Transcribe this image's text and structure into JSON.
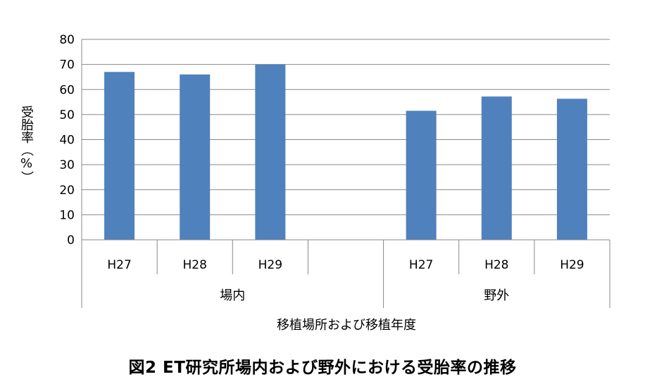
{
  "chart_data": {
    "type": "bar",
    "categories": [
      "H27",
      "H28",
      "H29",
      "",
      "H27",
      "H28",
      "H29"
    ],
    "groups": [
      {
        "label": "場内",
        "categories": [
          "H27",
          "H28",
          "H29",
          ""
        ]
      },
      {
        "label": "野外",
        "categories": [
          "H27",
          "H28",
          "H29"
        ]
      }
    ],
    "values": [
      67,
      66,
      70,
      null,
      51.5,
      57.2,
      56.3
    ],
    "ylabel": "受胎率（%）",
    "xlabel": "移植場所および移植年度",
    "ylim": [
      0,
      80
    ],
    "yticks": [
      0,
      10,
      20,
      30,
      40,
      50,
      60,
      70,
      80
    ],
    "grid": true,
    "bar_color": "#4f81bd"
  },
  "caption": "図2 ET研究所場内および野外における受胎率の推移"
}
